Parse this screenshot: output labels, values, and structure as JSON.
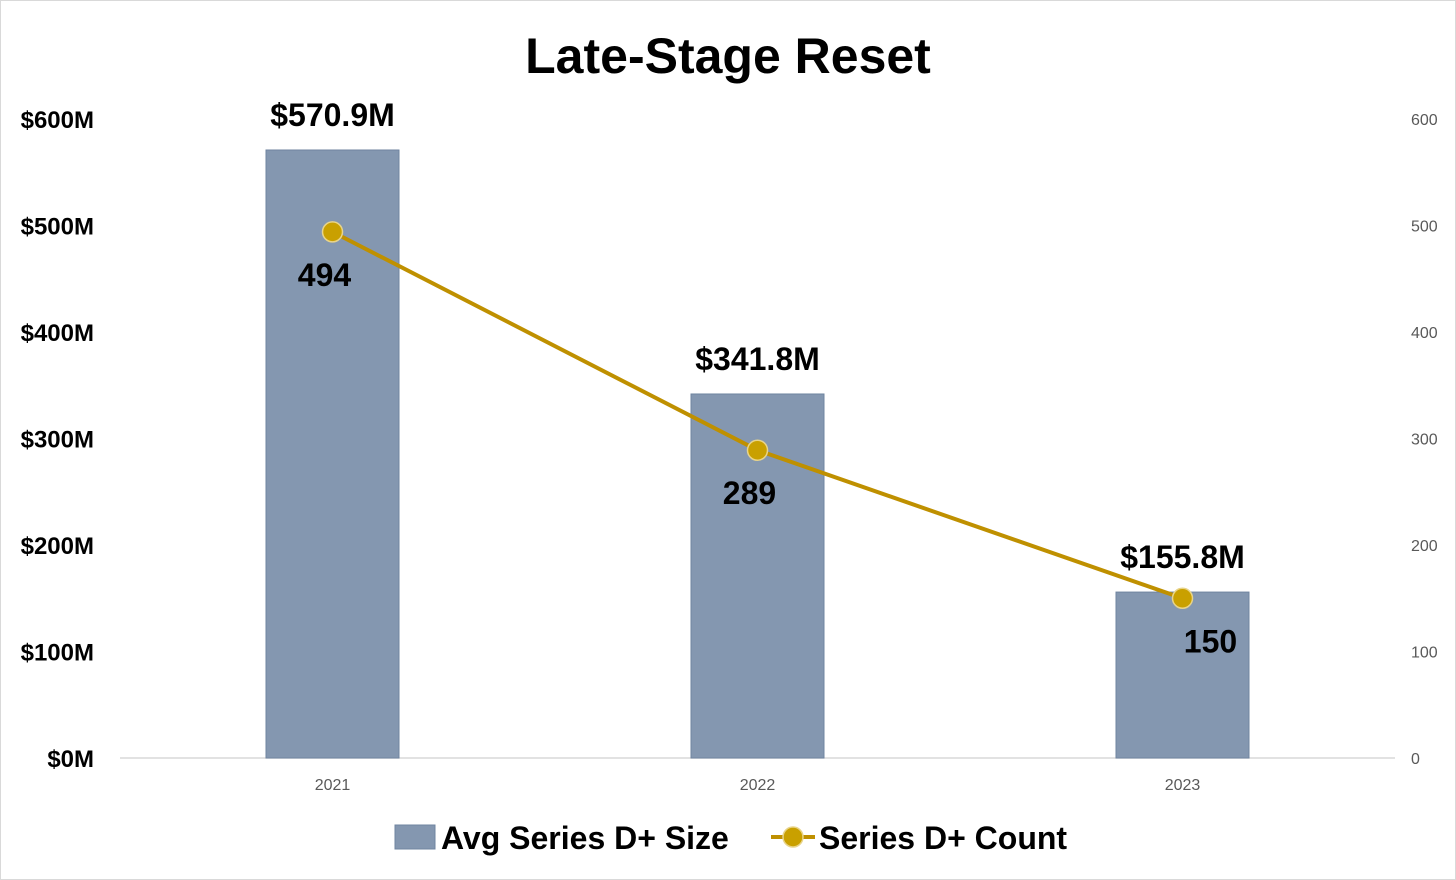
{
  "chart_data": {
    "type": "bar",
    "title": "Late-Stage Reset",
    "categories": [
      "2021",
      "2022",
      "2023"
    ],
    "series": [
      {
        "name": "Avg Series D+ Size",
        "type": "bar",
        "axis": "left",
        "values": [
          570.9,
          341.8,
          155.8
        ],
        "labels": [
          "$570.9M",
          "$341.8M",
          "$155.8M"
        ]
      },
      {
        "name": "Series D+ Count",
        "type": "line",
        "axis": "right",
        "values": [
          494,
          289,
          150
        ],
        "labels": [
          "494",
          "289",
          "150"
        ]
      }
    ],
    "left_axis": {
      "ylim": [
        0,
        600
      ],
      "ticks": [
        0,
        100,
        200,
        300,
        400,
        500,
        600
      ],
      "tick_labels": [
        "$0M",
        "$100M",
        "$200M",
        "$300M",
        "$400M",
        "$500M",
        "$600M"
      ]
    },
    "right_axis": {
      "ylim": [
        0,
        600
      ],
      "ticks": [
        0,
        100,
        200,
        300,
        400,
        500,
        600
      ],
      "tick_labels": [
        "0",
        "100",
        "200",
        "300",
        "400",
        "500",
        "600"
      ]
    },
    "grid": false,
    "legend_position": "bottom",
    "colors": {
      "bar": "#8497b0",
      "bar_border": "#6f84a0",
      "line": "#bf9000",
      "marker": "#c9a000",
      "axis": "#d9d9d9"
    }
  }
}
